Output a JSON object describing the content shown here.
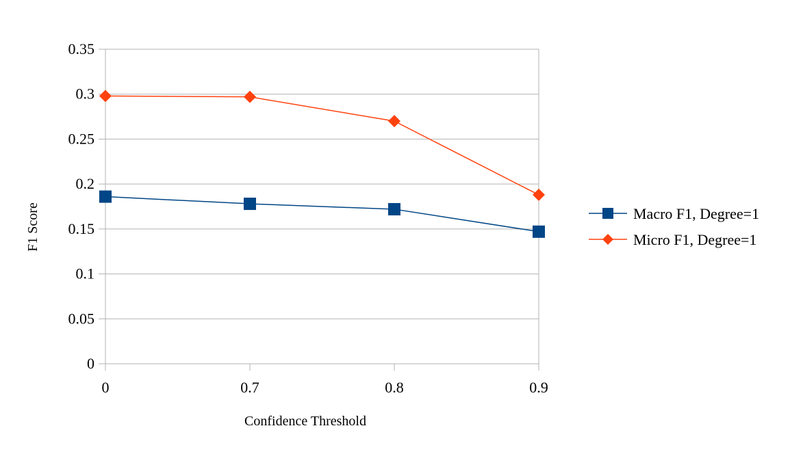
{
  "chart_data": {
    "type": "line",
    "title": "",
    "xlabel": "Confidence Threshold",
    "ylabel": "F1 Score",
    "categories": [
      "0",
      "0.7",
      "0.8",
      "0.9"
    ],
    "ylim": [
      0,
      0.35
    ],
    "yticks": [
      "0",
      "0.05",
      "0.1",
      "0.15",
      "0.2",
      "0.25",
      "0.3",
      "0.35"
    ],
    "ytick_values": [
      0,
      0.05,
      0.1,
      0.15,
      0.2,
      0.25,
      0.3,
      0.35
    ],
    "grid": true,
    "legend_position": "right",
    "series": [
      {
        "name": "Macro F1, Degree=1",
        "values": [
          0.186,
          0.178,
          0.172,
          0.147
        ],
        "color": "#004586",
        "marker": "square"
      },
      {
        "name": "Micro F1, Degree=1",
        "values": [
          0.298,
          0.297,
          0.27,
          0.188
        ],
        "color": "#ff420e",
        "marker": "diamond"
      }
    ]
  }
}
